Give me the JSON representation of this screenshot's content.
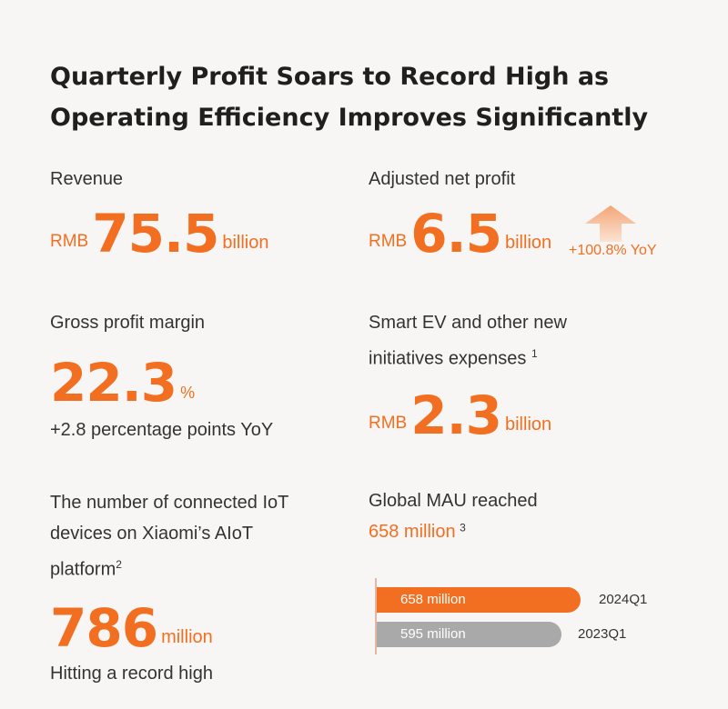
{
  "title_line1": "Quarterly Profit Soars to Record High as",
  "title_line2": "Operating Efficiency Improves Significantly",
  "revenue": {
    "label": "Revenue",
    "prefix": "RMB",
    "value": "75.5",
    "suffix": "billion"
  },
  "net_profit": {
    "label": "Adjusted net profit",
    "prefix": "RMB",
    "value": "6.5",
    "suffix": "billion",
    "yoy": "+100.8% YoY",
    "arrow_icon": "up-arrow-icon"
  },
  "gross_margin": {
    "label": "Gross profit margin",
    "value": "22.3",
    "suffix": "%",
    "sub": "+2.8 percentage points YoY"
  },
  "ev_expenses": {
    "label_line1": "Smart EV and other new",
    "label_line2": "initiatives expenses",
    "footnote": "1",
    "prefix": "RMB",
    "value": "2.3",
    "suffix": "billion"
  },
  "iot": {
    "label_line1": "The number of connected IoT",
    "label_line2": "devices on Xiaomi’s AIoT",
    "label_line3": "platform",
    "footnote": "2",
    "value": "786",
    "suffix": "million",
    "sub": "Hitting a record high"
  },
  "mau": {
    "label": "Global MAU reached",
    "value_text": "658 million",
    "footnote": "3"
  },
  "chart_data": {
    "type": "bar",
    "orientation": "horizontal",
    "categories": [
      "2024Q1",
      "2023Q1"
    ],
    "values": [
      658,
      595
    ],
    "value_labels": [
      "658 million",
      "595 million"
    ],
    "colors": [
      "#f26f21",
      "#a9a9a9"
    ],
    "xlim": [
      0,
      680
    ]
  }
}
